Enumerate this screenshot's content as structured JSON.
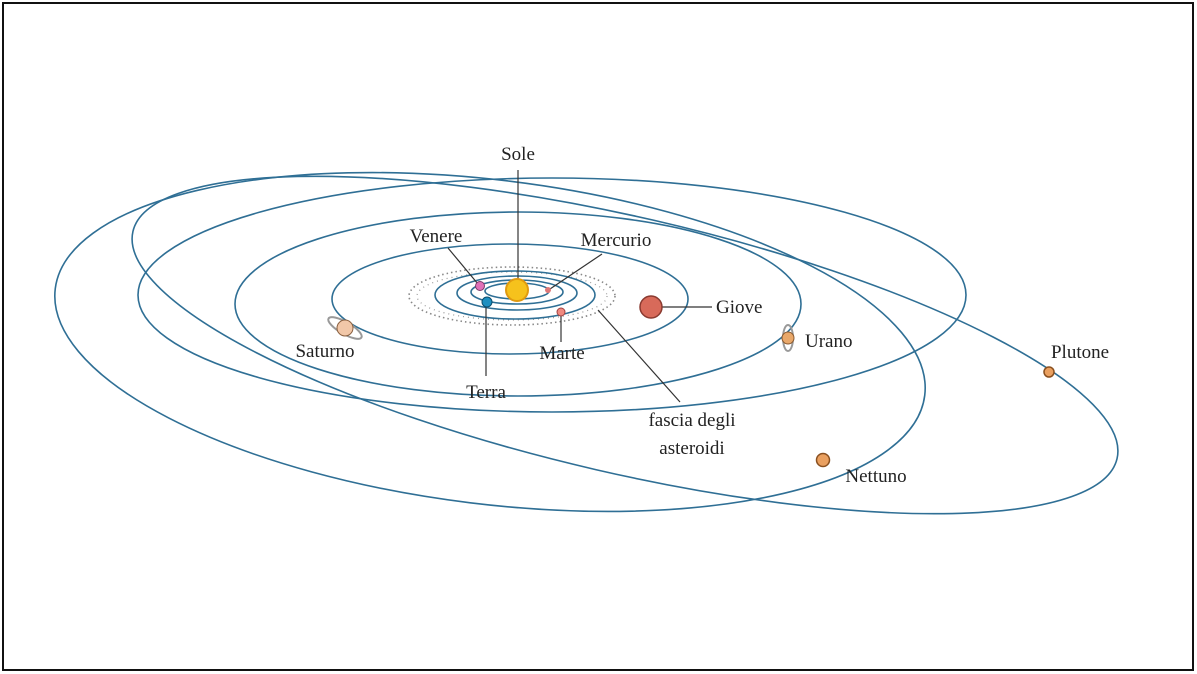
{
  "nodes": [
    {
      "label": "Sole"
    },
    {
      "label": "Venere"
    },
    {
      "label": "Mercurio"
    },
    {
      "label": "Giove"
    },
    {
      "label": "Saturno"
    },
    {
      "label": "Urano"
    },
    {
      "label": "Plutone"
    },
    {
      "label": "Marte"
    },
    {
      "label": "Terra"
    },
    {
      "label": [
        "fascia degli",
        "asteroidi"
      ]
    },
    {
      "label": "Nettuno"
    }
  ]
}
